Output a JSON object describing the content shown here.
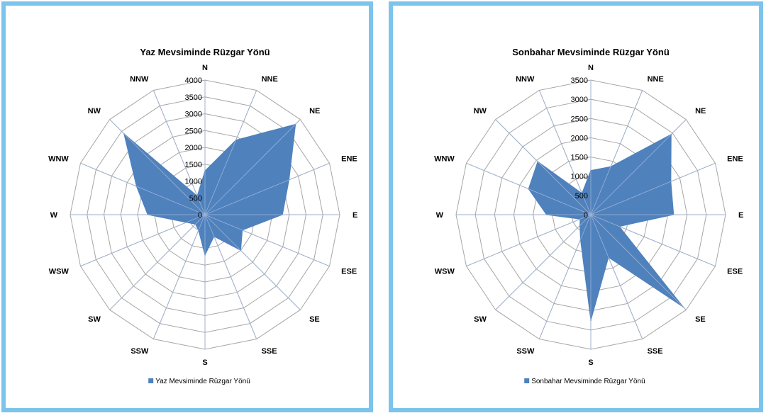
{
  "chart_data": [
    {
      "type": "radar",
      "title": "Yaz Mevsiminde Rüzgar Yönü",
      "categories": [
        "N",
        "NNE",
        "NE",
        "ENE",
        "E",
        "ESE",
        "SE",
        "SSE",
        "S",
        "SSW",
        "SW",
        "WSW",
        "W",
        "WNW",
        "NW",
        "NNW"
      ],
      "series": [
        {
          "name": "Yaz Mevsiminde Rüzgar Yönü",
          "values": [
            1300,
            2400,
            3800,
            2700,
            2300,
            1200,
            1500,
            700,
            1200,
            500,
            400,
            600,
            1700,
            2200,
            3400,
            600
          ]
        }
      ],
      "rlim": [
        0,
        4000
      ],
      "ticks": [
        "0",
        "500",
        "1000",
        "1500",
        "2000",
        "2500",
        "3000",
        "3500",
        "4000"
      ],
      "legend": "bottom",
      "color": "#4f81bd"
    },
    {
      "type": "radar",
      "title": "Sonbahar Mevsiminde Rüzgar Yönü",
      "categories": [
        "N",
        "NNE",
        "NE",
        "ENE",
        "E",
        "ESE",
        "SE",
        "SSE",
        "S",
        "SSW",
        "SW",
        "WSW",
        "W",
        "WNW",
        "NW",
        "NNW"
      ],
      "series": [
        {
          "name": "Sonbahar Mevsiminde Rüzgar Yönü",
          "values": [
            1150,
            1350,
            2950,
            2250,
            2150,
            800,
            3400,
            1200,
            2750,
            700,
            400,
            300,
            1150,
            1750,
            1950,
            600
          ]
        }
      ],
      "rlim": [
        0,
        3500
      ],
      "ticks": [
        "0",
        "500",
        "1000",
        "1500",
        "2000",
        "2500",
        "3000",
        "3500"
      ],
      "legend": "bottom",
      "color": "#4f81bd"
    }
  ]
}
